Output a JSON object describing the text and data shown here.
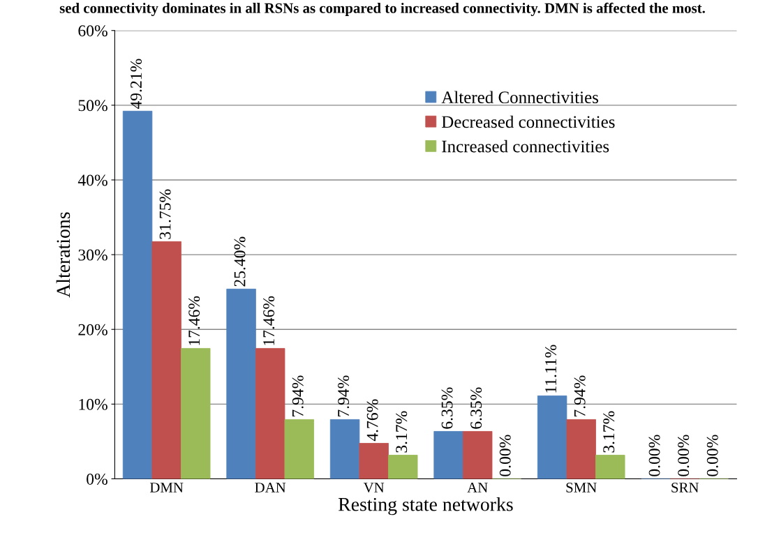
{
  "chart_data": {
    "type": "bar",
    "title": "sed connectivity dominates in all RSNs as compared to increased connectivity. DMN is affected the most.",
    "xlabel": "Resting state networks",
    "ylabel": "Alterations",
    "categories": [
      "DMN",
      "DAN",
      "VN",
      "AN",
      "SMN",
      "SRN"
    ],
    "series": [
      {
        "name": "Altered Connectivities",
        "color": "#4f81bd",
        "values": [
          49.21,
          25.4,
          7.94,
          6.35,
          11.11,
          0.0
        ],
        "value_labels": [
          "49.21%",
          "25.40%",
          "7.94%",
          "6.35%",
          "11.11%",
          "0.00%"
        ]
      },
      {
        "name": "Decreased connectivities",
        "color": "#c0504d",
        "values": [
          31.75,
          17.46,
          4.76,
          6.35,
          7.94,
          0.0
        ],
        "value_labels": [
          "31.75%",
          "17.46%",
          "4.76%",
          "6.35%",
          "7.94%",
          "0.00%"
        ]
      },
      {
        "name": "Increased connectivities",
        "color": "#9bbb59",
        "values": [
          17.46,
          7.94,
          3.17,
          0.0,
          3.17,
          0.0
        ],
        "value_labels": [
          "17.46%",
          "7.94%",
          "3.17%",
          "0.00%",
          "3.17%",
          "0.00%"
        ]
      }
    ],
    "ylim": [
      0,
      60
    ],
    "yticks": [
      {
        "value": 0,
        "label": "0%"
      },
      {
        "value": 10,
        "label": "10%"
      },
      {
        "value": 20,
        "label": "20%"
      },
      {
        "value": 30,
        "label": "30%"
      },
      {
        "value": 40,
        "label": "40%"
      },
      {
        "value": 50,
        "label": "50%"
      },
      {
        "value": 60,
        "label": "60%"
      }
    ],
    "grid": "y",
    "legend": "top right"
  }
}
